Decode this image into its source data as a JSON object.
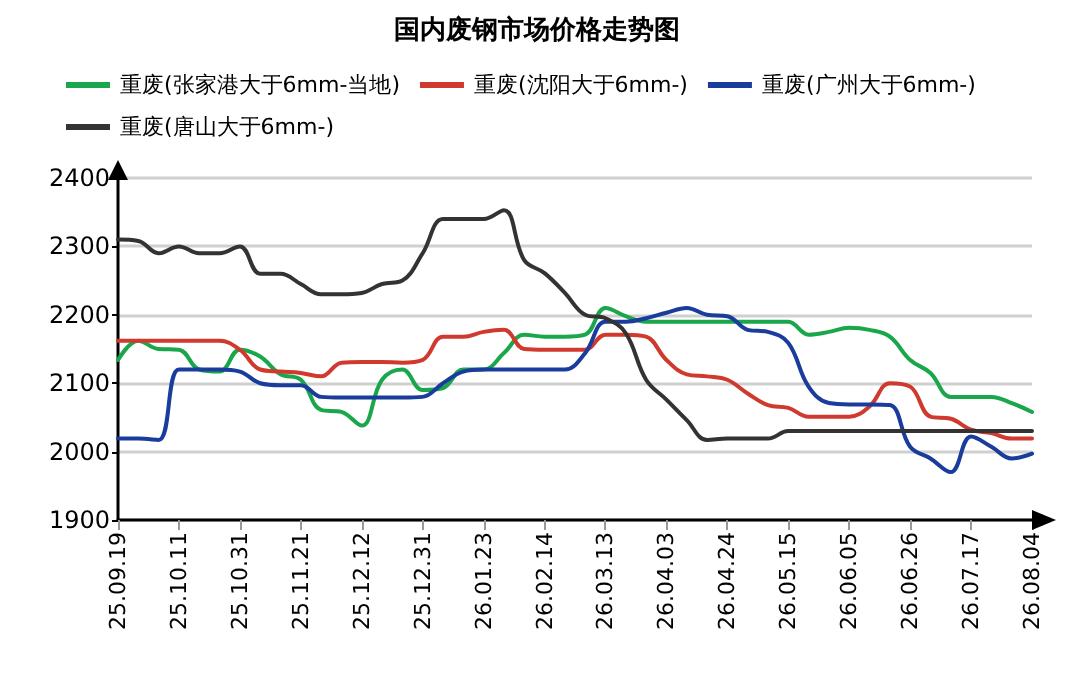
{
  "chart_data": {
    "type": "line",
    "title": "国内废钢市场价格走势图",
    "categories": [
      "25.09.19",
      null,
      null,
      "25.10.11",
      null,
      null,
      "25.10.31",
      null,
      null,
      "25.11.21",
      null,
      null,
      "25.12.12",
      null,
      null,
      "25.12.31",
      null,
      null,
      "26.01.23",
      null,
      null,
      "26.02.14",
      null,
      null,
      "26.03.13",
      null,
      null,
      "26.04.03",
      null,
      null,
      "26.04.24",
      null,
      null,
      "26.05.15",
      null,
      null,
      "26.06.05",
      null,
      null,
      "26.06.26",
      null,
      null,
      "26.07.17",
      null,
      null,
      "26.08.04"
    ],
    "series": [
      {
        "name": "重废(张家港大于6mm-当地)",
        "color": "#1aa64a",
        "values": [
          2134,
          2162,
          2150,
          2149,
          2120,
          2117,
          2149,
          2139,
          2113,
          2105,
          2061,
          2058,
          2038,
          2105,
          2120,
          2090,
          2093,
          2120,
          2120,
          2144,
          2171,
          2168,
          2168,
          2171,
          2210,
          2198,
          2190,
          2190,
          2190,
          2190,
          2190,
          2190,
          2190,
          2190,
          2171,
          2175,
          2181,
          2178,
          2168,
          2134,
          2115,
          2080,
          2080,
          2080,
          2071,
          2058
        ]
      },
      {
        "name": "重废(沈阳大于6mm-)",
        "color": "#d03a2e",
        "values": [
          2162,
          2162,
          2162,
          2162,
          2162,
          2162,
          2149,
          2120,
          2117,
          2115,
          2110,
          2130,
          2131,
          2131,
          2130,
          2134,
          2168,
          2168,
          2175,
          2178,
          2150,
          2149,
          2149,
          2149,
          2171,
          2171,
          2168,
          2134,
          2113,
          2110,
          2105,
          2085,
          2068,
          2064,
          2051,
          2051,
          2051,
          2066,
          2100,
          2095,
          2051,
          2048,
          2032,
          2027,
          2019,
          2019
        ]
      },
      {
        "name": "重废(广州大于6mm-)",
        "color": "#1a3c9c",
        "values": [
          2019,
          2019,
          2017,
          2120,
          2120,
          2120,
          2117,
          2100,
          2097,
          2097,
          2080,
          2079,
          2079,
          2079,
          2079,
          2080,
          2100,
          2117,
          2120,
          2120,
          2120,
          2120,
          2120,
          2144,
          2190,
          2190,
          2195,
          2203,
          2210,
          2200,
          2198,
          2178,
          2175,
          2159,
          2095,
          2071,
          2069,
          2069,
          2068,
          2007,
          1990,
          1970,
          2022,
          2007,
          1990,
          1997
        ]
      },
      {
        "name": "重废(唐山大于6mm-)",
        "color": "#333333",
        "values": [
          2310,
          2308,
          2290,
          2300,
          2290,
          2290,
          2300,
          2260,
          2260,
          2245,
          2230,
          2230,
          2232,
          2245,
          2250,
          2290,
          2340,
          2340,
          2340,
          2353,
          2280,
          2261,
          2232,
          2200,
          2195,
          2173,
          2105,
          2076,
          2046,
          2017,
          2019,
          2019,
          2019,
          2030,
          2030,
          2030,
          2030,
          2030,
          2030,
          2030,
          2030,
          2030,
          2030,
          2030,
          2030,
          2030
        ]
      }
    ],
    "ylim": [
      1900,
      2400
    ],
    "yticks": [
      1900,
      2000,
      2100,
      2200,
      2300,
      2400
    ],
    "grid": "y",
    "legend": "top",
    "marker": "none"
  }
}
